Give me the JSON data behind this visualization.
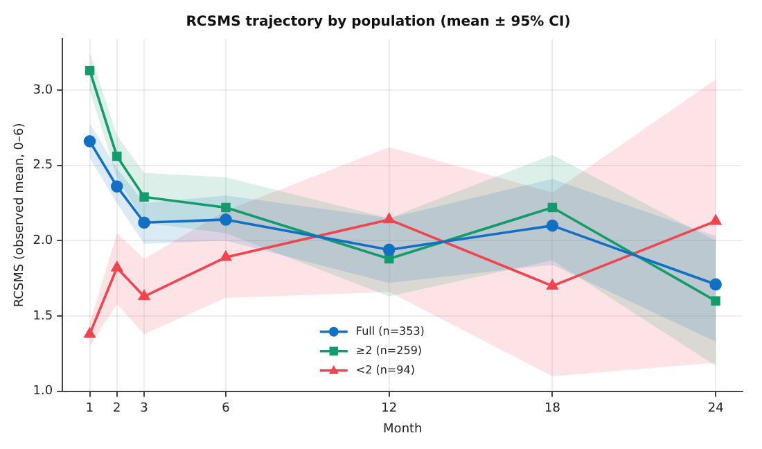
{
  "chart_data": {
    "type": "line",
    "title": "RCSMS trajectory by population (mean ± 95% CI)",
    "xlabel": "Month",
    "ylabel": "RCSMS (observed mean, 0–6)",
    "x": [
      1,
      2,
      3,
      6,
      12,
      18,
      24
    ],
    "series": [
      {
        "name": "Full (n=353)",
        "color": "#1170c4",
        "marker": "circle",
        "values": [
          2.66,
          2.36,
          2.12,
          2.14,
          1.94,
          2.1,
          1.71
        ],
        "lower": [
          2.55,
          2.25,
          1.98,
          2.0,
          1.72,
          1.84,
          1.33
        ],
        "upper": [
          2.78,
          2.48,
          2.25,
          2.3,
          2.15,
          2.41,
          2.03
        ]
      },
      {
        "name": "≥2 (n=259)",
        "color": "#129c6c",
        "marker": "square",
        "values": [
          3.13,
          2.56,
          2.29,
          2.22,
          1.88,
          2.22,
          1.6
        ],
        "lower": [
          3.0,
          2.42,
          2.12,
          2.05,
          1.63,
          1.87,
          1.17
        ],
        "upper": [
          3.25,
          2.7,
          2.45,
          2.42,
          2.15,
          2.57,
          2.0
        ]
      },
      {
        "name": "<2 (n=94)",
        "color": "#f0444f",
        "marker": "triangle",
        "values": [
          1.38,
          1.82,
          1.63,
          1.89,
          2.14,
          1.7,
          2.13
        ],
        "lower": [
          1.3,
          1.58,
          1.38,
          1.62,
          1.66,
          1.1,
          1.19
        ],
        "upper": [
          1.45,
          2.05,
          1.88,
          2.2,
          2.62,
          2.32,
          3.07
        ]
      }
    ],
    "xlim": [
      0,
      25
    ],
    "xticks": [
      1,
      2,
      3,
      6,
      12,
      18,
      24
    ],
    "ylim": [
      1,
      3.34
    ],
    "yticks": [
      {
        "value": 1,
        "label": "1.0"
      },
      {
        "value": 1.5,
        "label": "1.5"
      },
      {
        "value": 2,
        "label": "2.0"
      },
      {
        "value": 2.5,
        "label": "2.5"
      },
      {
        "value": 3,
        "label": "3.0"
      }
    ],
    "grid": true,
    "legend": "bottom",
    "line_style": "solid"
  }
}
